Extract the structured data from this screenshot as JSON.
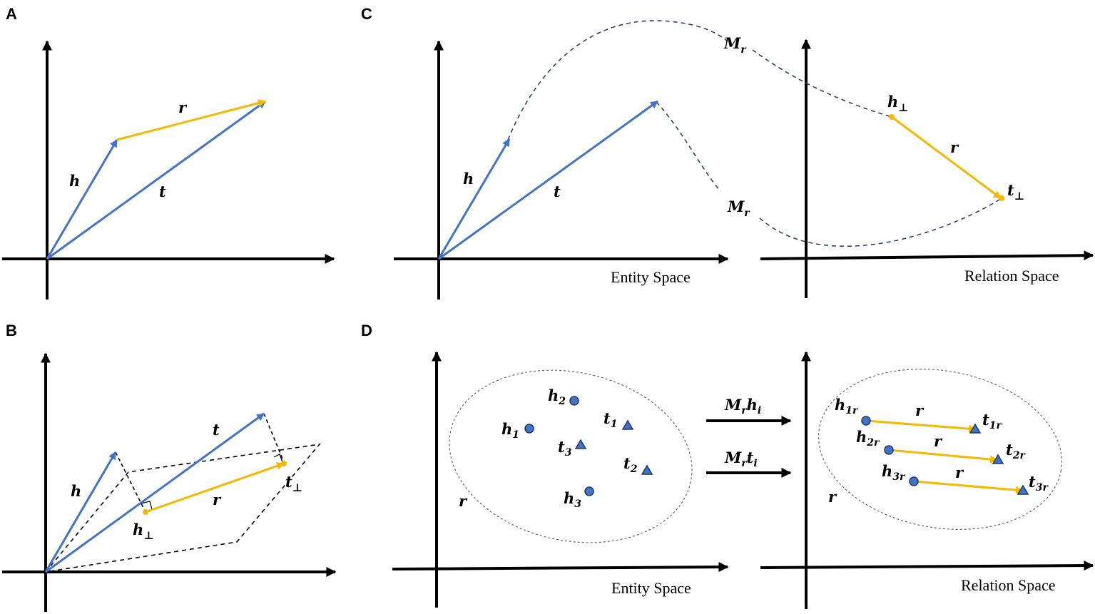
{
  "colors": {
    "blue": "#4472c4",
    "yellow": "#f5b800",
    "axis": "#000000",
    "dash": "#2f3f6e",
    "point_fill": "#4472c4",
    "point_stroke": "#1f3864"
  },
  "panels": {
    "a": {
      "letter": "A",
      "h": "h",
      "t": "t",
      "r": "r"
    },
    "b": {
      "letter": "B",
      "h": "h",
      "t": "t",
      "r": "r",
      "h_perp": "h",
      "t_perp": "t",
      "perp": "⊥"
    },
    "c": {
      "letter": "C",
      "h": "h",
      "t": "t",
      "r": "r",
      "m_top": "M",
      "m_bottom": "M",
      "m_sub": "r",
      "h_perp": "h",
      "t_perp": "t",
      "perp": "⊥",
      "entity_space": "Entity Space",
      "relation_space": "Relation Space"
    },
    "d": {
      "letter": "D",
      "entity_space": "Entity Space",
      "relation_space": "Relation Space",
      "r_left": "r",
      "r_right": "r",
      "map_h": {
        "m": "M",
        "m_sub": "r",
        "v": "h",
        "v_sub": "i"
      },
      "map_t": {
        "m": "M",
        "m_sub": "r",
        "v": "t",
        "v_sub": "i"
      },
      "entities": [
        {
          "name": "h",
          "sub": "1"
        },
        {
          "name": "h",
          "sub": "2"
        },
        {
          "name": "h",
          "sub": "3"
        },
        {
          "name": "t",
          "sub": "1"
        },
        {
          "name": "t",
          "sub": "2"
        },
        {
          "name": "t",
          "sub": "3"
        }
      ],
      "relations": [
        {
          "h": "h",
          "h_sub": "1r",
          "r": "r",
          "t": "t",
          "t_sub": "1r"
        },
        {
          "h": "h",
          "h_sub": "2r",
          "r": "r",
          "t": "t",
          "t_sub": "2r"
        },
        {
          "h": "h",
          "h_sub": "3r",
          "r": "r",
          "t": "t",
          "t_sub": "3r"
        }
      ]
    }
  }
}
